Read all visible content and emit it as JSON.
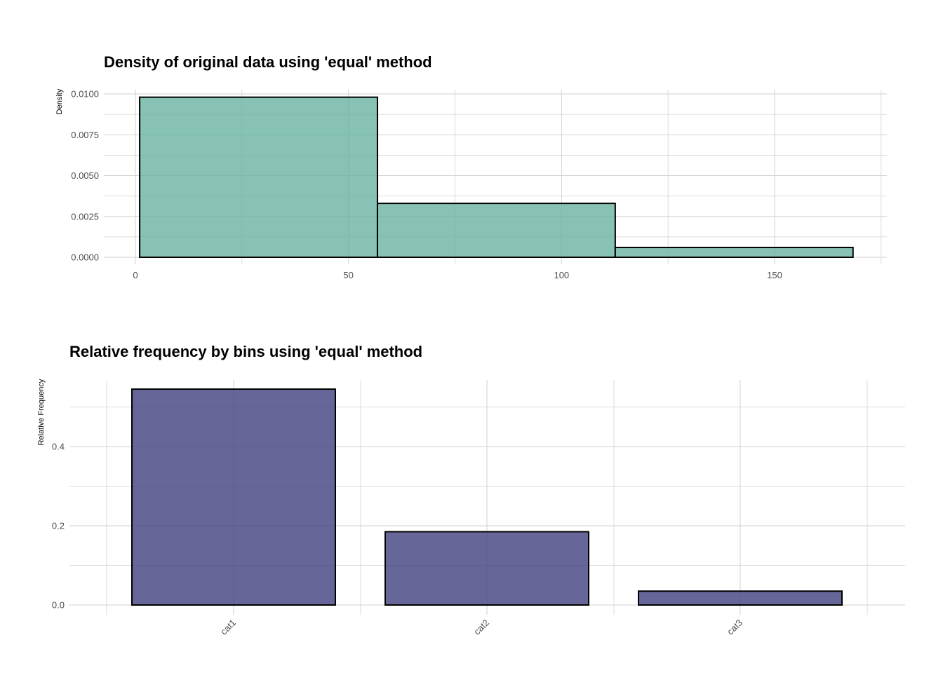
{
  "chart_data": [
    {
      "type": "bar",
      "subtype": "histogram",
      "title": "Density of original data using 'equal' method",
      "ylabel": "Density",
      "xlim": [
        -5,
        177
      ],
      "ylim": [
        0,
        0.0101
      ],
      "x_ticks": [
        0,
        50,
        100,
        150
      ],
      "x_tick_labels": [
        "0",
        "50",
        "100",
        "150"
      ],
      "y_ticks": [
        0,
        0.0025,
        0.005,
        0.0075,
        0.01
      ],
      "y_tick_labels": [
        "0.0000",
        "0.0025",
        "0.0050",
        "0.0075",
        "0.0100"
      ],
      "bins": [
        {
          "x0": 1,
          "x1": 56.8,
          "density": 0.0098
        },
        {
          "x0": 56.8,
          "x1": 112.6,
          "density": 0.0033
        },
        {
          "x0": 112.6,
          "x1": 168.4,
          "density": 0.0006
        }
      ],
      "fill_color": "#69b3a2",
      "grid": true
    },
    {
      "type": "bar",
      "title": "Relative frequency by bins using 'equal' method",
      "ylabel": "Relative Frequency",
      "categories": [
        "cat1",
        "cat2",
        "cat3"
      ],
      "values": [
        0.545,
        0.185,
        0.035
      ],
      "ylim": [
        0,
        0.57
      ],
      "y_ticks": [
        0,
        0.2,
        0.4
      ],
      "y_tick_labels": [
        "0.0",
        "0.2",
        "0.4"
      ],
      "fill_color": "#404080",
      "grid": true
    }
  ]
}
